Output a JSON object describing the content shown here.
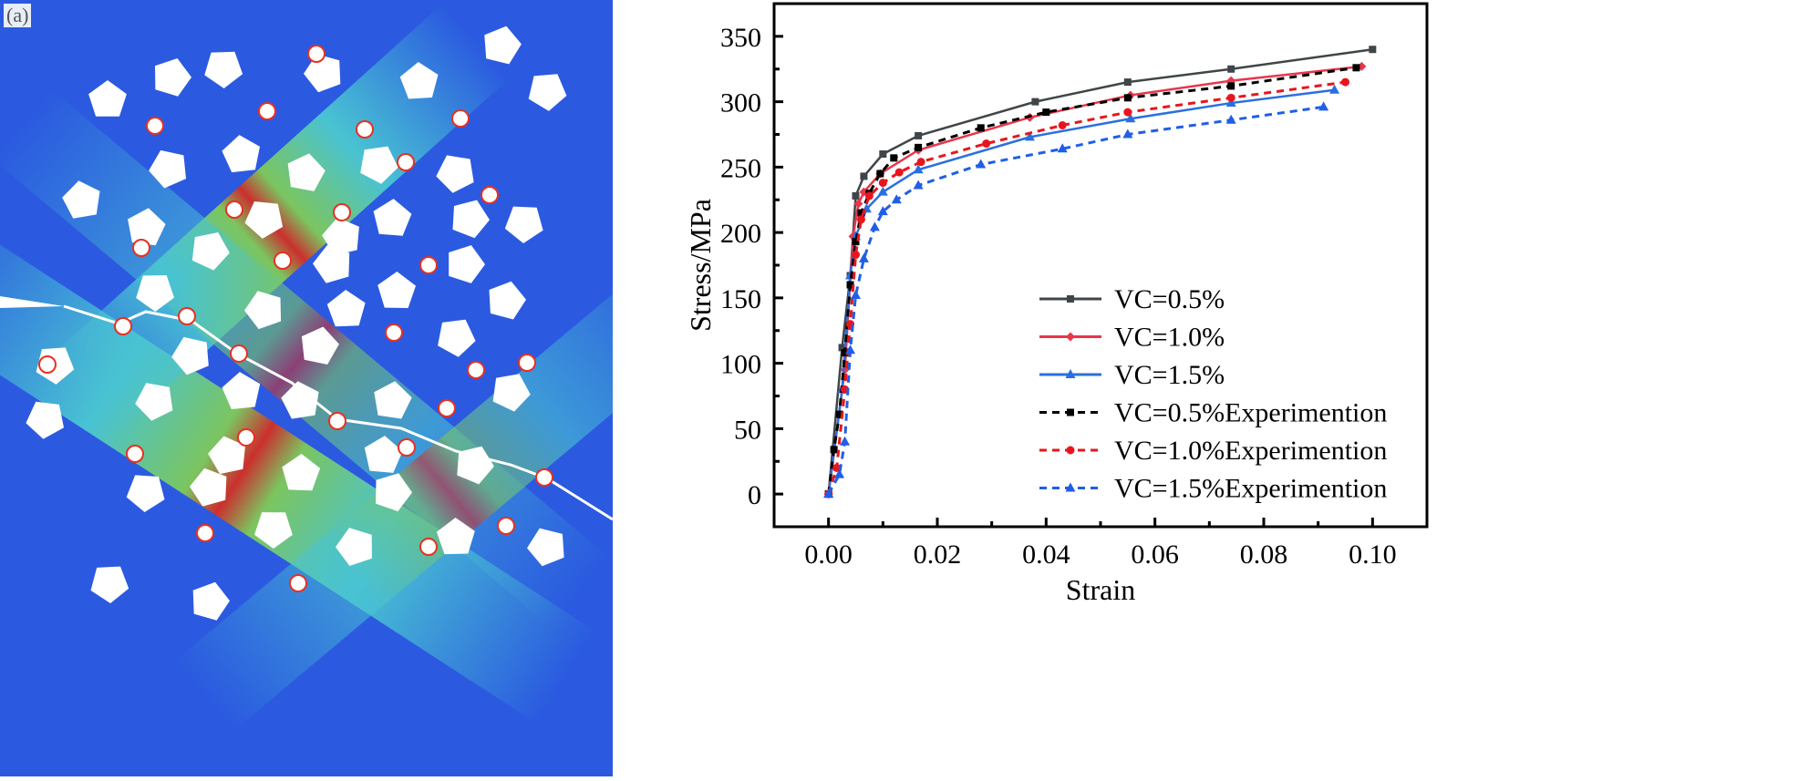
{
  "panel_label": "(a)",
  "chart_data": {
    "type": "line",
    "title": "",
    "xlabel": "Strain",
    "ylabel": "Stress/MPa",
    "xlim": [
      -0.01,
      0.11
    ],
    "ylim": [
      -25,
      375
    ],
    "xticks": [
      0.0,
      0.02,
      0.04,
      0.06,
      0.08,
      0.1
    ],
    "xtick_labels": [
      "0.00",
      "0.02",
      "0.04",
      "0.06",
      "0.08",
      "0.10"
    ],
    "yticks": [
      0,
      50,
      100,
      150,
      200,
      250,
      300,
      350
    ],
    "ytick_labels": [
      "0",
      "50",
      "100",
      "150",
      "200",
      "250",
      "300",
      "350"
    ],
    "grid": false,
    "legend_position": "bottom-right",
    "series": [
      {
        "name": "VC=0.5%",
        "color": "#3f4548",
        "dash": false,
        "marker": "square",
        "x": [
          0,
          0.0025,
          0.004,
          0.005,
          0.0065,
          0.01,
          0.0165,
          0.038,
          0.055,
          0.074,
          0.1
        ],
        "y": [
          0,
          112,
          167,
          228,
          243,
          260,
          274,
          300,
          315,
          325,
          340
        ]
      },
      {
        "name": "VC=1.0%",
        "color": "#e8364a",
        "dash": false,
        "marker": "diamond",
        "x": [
          0,
          0.003,
          0.0045,
          0.0055,
          0.0065,
          0.0095,
          0.0165,
          0.037,
          0.0555,
          0.074,
          0.098
        ],
        "y": [
          0,
          95,
          197,
          222,
          231,
          245,
          263,
          288,
          305,
          316,
          327
        ]
      },
      {
        "name": "VC=1.5%",
        "color": "#2a6fe0",
        "dash": false,
        "marker": "triangle",
        "x": [
          0,
          0.0025,
          0.004,
          0.005,
          0.007,
          0.01,
          0.0165,
          0.037,
          0.0555,
          0.074,
          0.093
        ],
        "y": [
          0,
          80,
          167,
          197,
          218,
          231,
          248,
          273,
          287,
          299,
          309
        ]
      },
      {
        "name": "VC=0.5%Experimention",
        "color": "#000000",
        "dash": true,
        "marker": "square",
        "x": [
          0,
          0.001,
          0.002,
          0.003,
          0.004,
          0.005,
          0.006,
          0.0075,
          0.0095,
          0.012,
          0.0165,
          0.028,
          0.04,
          0.055,
          0.074,
          0.097
        ],
        "y": [
          0,
          34,
          61,
          108,
          160,
          193,
          215,
          230,
          245,
          257,
          265,
          280,
          292,
          303,
          312,
          326
        ]
      },
      {
        "name": "VC=1.0%Experimention",
        "color": "#e8161c",
        "dash": true,
        "marker": "circle",
        "x": [
          0,
          0.0015,
          0.003,
          0.004,
          0.005,
          0.006,
          0.0075,
          0.01,
          0.013,
          0.017,
          0.029,
          0.043,
          0.055,
          0.074,
          0.095
        ],
        "y": [
          0,
          20,
          80,
          130,
          183,
          210,
          228,
          238,
          246,
          254,
          268,
          282,
          292,
          303,
          315
        ]
      },
      {
        "name": "VC=1.5%Experimention",
        "color": "#1f5ee8",
        "dash": true,
        "marker": "triangle",
        "x": [
          0,
          0.002,
          0.003,
          0.004,
          0.005,
          0.0065,
          0.0085,
          0.01,
          0.0125,
          0.0165,
          0.028,
          0.043,
          0.055,
          0.074,
          0.091
        ],
        "y": [
          0,
          15,
          40,
          110,
          152,
          180,
          204,
          216,
          225,
          236,
          252,
          264,
          275,
          286,
          296
        ]
      }
    ]
  },
  "colors": {
    "field_blue": "#2b5ae0",
    "field_cyan": "#4fd6d0",
    "field_green": "#8ad84a",
    "field_yellow": "#f0e030",
    "field_red": "#e82810"
  }
}
